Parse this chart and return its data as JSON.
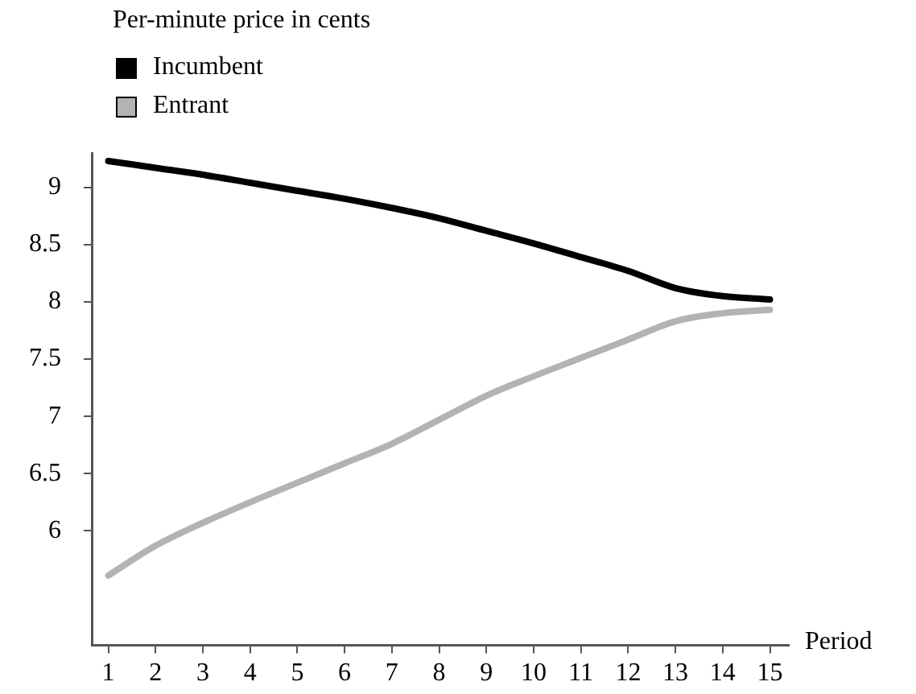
{
  "chart_data": {
    "type": "line",
    "ylabel": "Per-minute price in cents",
    "xlabel": "Period",
    "x": [
      1,
      2,
      3,
      4,
      5,
      6,
      7,
      8,
      9,
      10,
      11,
      12,
      13,
      14,
      15
    ],
    "series": [
      {
        "name": "Incumbent",
        "color": "#000000",
        "values": [
          9.23,
          9.17,
          9.11,
          9.04,
          8.97,
          8.9,
          8.82,
          8.73,
          8.62,
          8.51,
          8.39,
          8.27,
          8.12,
          8.05,
          8.02
        ]
      },
      {
        "name": "Entrant",
        "color": "#b3b3b3",
        "values": [
          5.61,
          5.87,
          6.07,
          6.25,
          6.42,
          6.59,
          6.76,
          6.97,
          7.18,
          7.35,
          7.51,
          7.67,
          7.83,
          7.9,
          7.93
        ]
      }
    ],
    "xlim": [
      0.65,
      15.4
    ],
    "xticks": [
      1,
      2,
      3,
      4,
      5,
      6,
      7,
      8,
      9,
      10,
      11,
      12,
      13,
      14,
      15
    ],
    "ylim": [
      5.0,
      9.3
    ],
    "yticks": [
      6,
      6.5,
      7,
      7.5,
      8,
      8.5,
      9
    ],
    "legend": "top left",
    "grid": false,
    "marker": "none",
    "line_style": "solid"
  }
}
